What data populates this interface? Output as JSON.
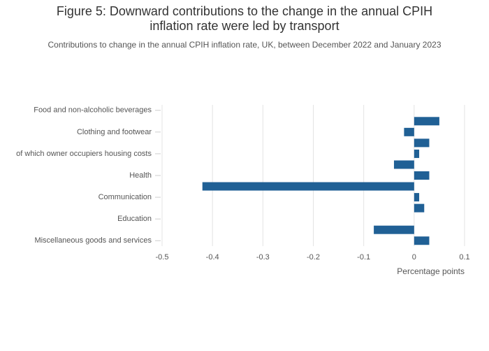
{
  "chart_data": {
    "type": "bar",
    "orientation": "horizontal",
    "title": "Figure 5: Downward contributions to the change in the annual CPIH inflation rate were led by transport",
    "subtitle": "Contributions to change in the annual CPIH inflation rate, UK, between December 2022 and January 2023",
    "x_label": "Percentage points",
    "categories": [
      "Food and non-alcoholic beverages",
      null,
      "Clothing and footwear",
      null,
      "of which owner occupiers housing costs",
      null,
      "Health",
      null,
      "Communication",
      null,
      "Education",
      null,
      "Miscellaneous goods and services"
    ],
    "values": [
      0,
      0.05,
      -0.02,
      0.03,
      0.01,
      -0.04,
      0.03,
      -0.42,
      0.01,
      0.02,
      0,
      -0.08,
      0.03
    ],
    "color": "#206095",
    "xlim": [
      -0.5,
      0.1
    ],
    "xticks": [
      -0.5,
      -0.4,
      -0.3,
      -0.2,
      -0.1,
      0,
      0.1
    ],
    "grid": true
  }
}
